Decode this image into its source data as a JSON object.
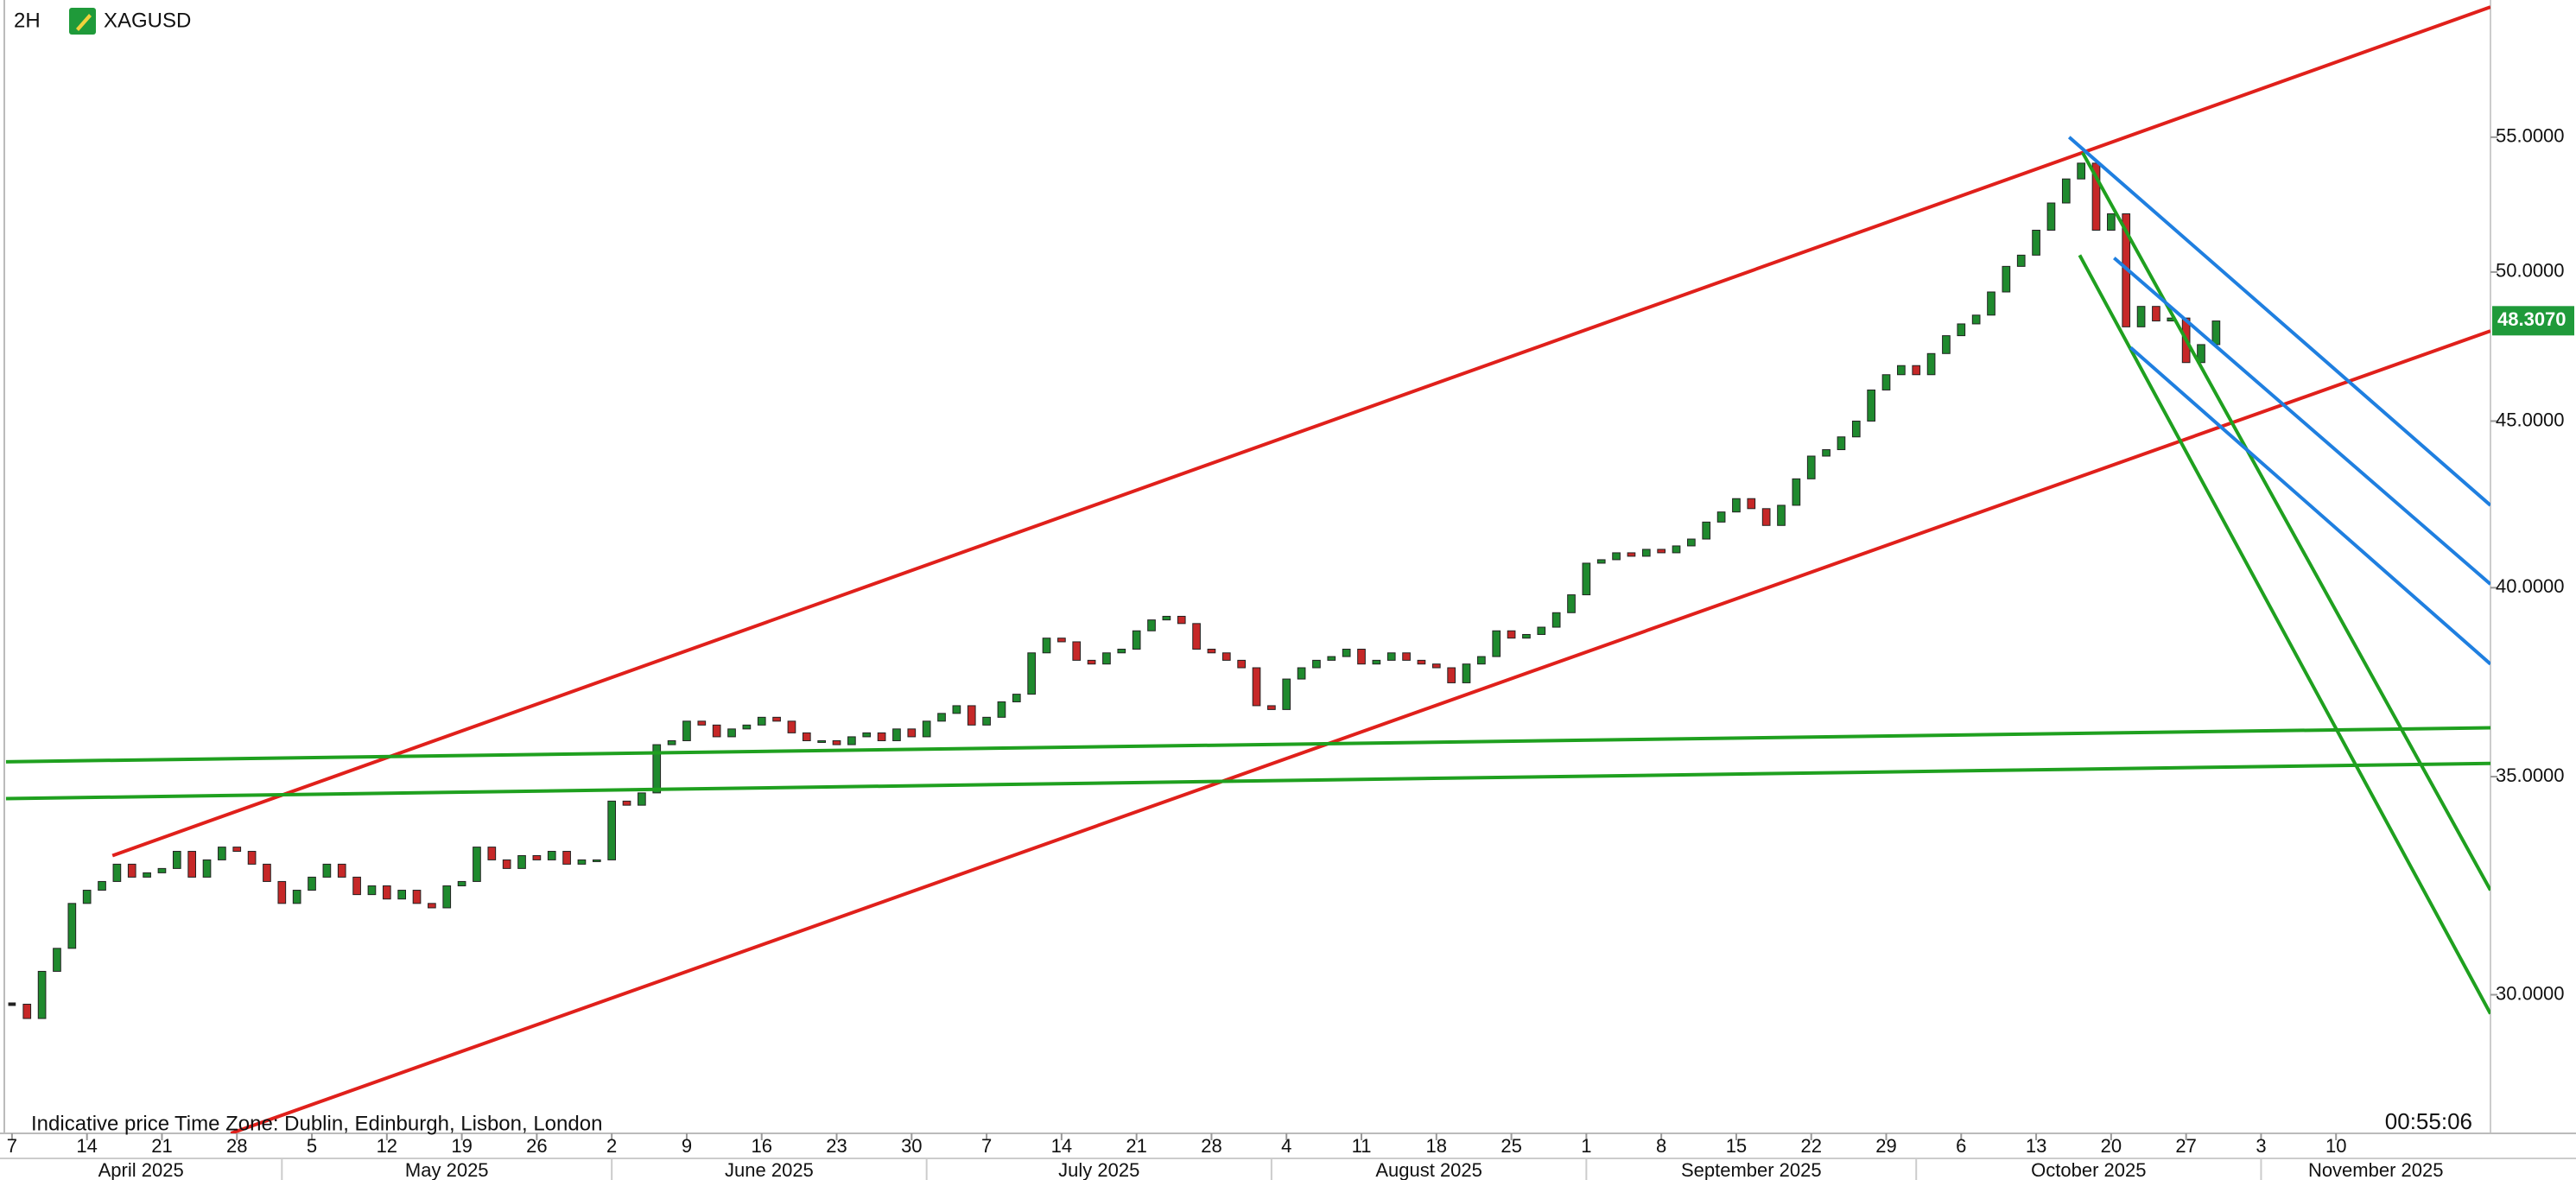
{
  "chart_data": {
    "type": "candlestick",
    "timeframe": "2H",
    "title": "XAGUSD",
    "footer_left": "Indicative price",
    "timezone": "Time Zone: Dublin, Edinburgh, Lisbon, London",
    "countdown": "00:55:06",
    "log_scale": true,
    "up_color": "#1f8a2e",
    "down_color": "#c62828",
    "ylim": [
      27.2,
      60.6
    ],
    "yticks": [
      {
        "value": 30,
        "label": "30.0000"
      },
      {
        "value": 35,
        "label": "35.0000"
      },
      {
        "value": 40,
        "label": "40.0000"
      },
      {
        "value": 45,
        "label": "45.0000"
      },
      {
        "value": 50,
        "label": "50.0000"
      },
      {
        "value": 55,
        "label": "55.0000"
      }
    ],
    "xlim": [
      -0.8,
      165.3
    ],
    "xticks": [
      {
        "value": 0,
        "label": "7"
      },
      {
        "value": 5,
        "label": "14"
      },
      {
        "value": 10,
        "label": "21"
      },
      {
        "value": 15,
        "label": "28"
      },
      {
        "value": 20,
        "label": "5"
      },
      {
        "value": 25,
        "label": "12"
      },
      {
        "value": 30,
        "label": "19"
      },
      {
        "value": 35,
        "label": "26"
      },
      {
        "value": 40,
        "label": "2"
      },
      {
        "value": 45,
        "label": "9"
      },
      {
        "value": 50,
        "label": "16"
      },
      {
        "value": 55,
        "label": "23"
      },
      {
        "value": 60,
        "label": "30"
      },
      {
        "value": 65,
        "label": "7"
      },
      {
        "value": 70,
        "label": "14"
      },
      {
        "value": 75,
        "label": "21"
      },
      {
        "value": 80,
        "label": "28"
      },
      {
        "value": 85,
        "label": "4"
      },
      {
        "value": 90,
        "label": "11"
      },
      {
        "value": 95,
        "label": "18"
      },
      {
        "value": 100,
        "label": "25"
      },
      {
        "value": 105,
        "label": "1"
      },
      {
        "value": 110,
        "label": "8"
      },
      {
        "value": 115,
        "label": "15"
      },
      {
        "value": 120,
        "label": "22"
      },
      {
        "value": 125,
        "label": "29"
      },
      {
        "value": 130,
        "label": "6"
      },
      {
        "value": 135,
        "label": "13"
      },
      {
        "value": 140,
        "label": "20"
      },
      {
        "value": 145,
        "label": "27"
      },
      {
        "value": 150,
        "label": "3"
      },
      {
        "value": 155,
        "label": "10"
      }
    ],
    "month_ticks": [
      {
        "value": -4,
        "label": "April 2025"
      },
      {
        "value": 18,
        "label": "May 2025"
      },
      {
        "value": 40,
        "label": "June 2025"
      },
      {
        "value": 61,
        "label": "July 2025"
      },
      {
        "value": 84,
        "label": "August 2025"
      },
      {
        "value": 105,
        "label": "September 2025"
      },
      {
        "value": 127,
        "label": "October 2025"
      },
      {
        "value": 150,
        "label": "November 2025"
      }
    ],
    "last_price": {
      "value": 48.307,
      "label": "48.3070",
      "color": "#1f9a3a"
    },
    "series": [
      {
        "name": "XAGUSD",
        "values": [
          29.8,
          29.5,
          30.5,
          31.0,
          32.0,
          32.3,
          32.5,
          32.9,
          32.6,
          32.7,
          32.8,
          33.2,
          32.6,
          33.0,
          33.3,
          33.2,
          32.9,
          32.5,
          32.0,
          32.3,
          32.6,
          32.9,
          32.6,
          32.2,
          32.4,
          32.1,
          32.3,
          32.0,
          31.9,
          32.4,
          32.5,
          33.3,
          33.0,
          32.8,
          33.1,
          33.0,
          33.2,
          32.9,
          33.0,
          33.0,
          34.4,
          34.3,
          34.6,
          35.8,
          35.9,
          36.4,
          36.3,
          36.0,
          36.2,
          36.3,
          36.5,
          36.4,
          36.1,
          35.9,
          35.9,
          35.8,
          36.0,
          36.1,
          35.9,
          36.2,
          36.0,
          36.4,
          36.6,
          36.8,
          36.3,
          36.5,
          36.9,
          37.1,
          38.2,
          38.6,
          38.5,
          38.0,
          37.9,
          38.2,
          38.3,
          38.8,
          39.1,
          39.2,
          39.0,
          38.3,
          38.2,
          38.0,
          37.8,
          36.8,
          36.7,
          37.5,
          37.8,
          38.0,
          38.1,
          38.3,
          37.9,
          38.0,
          38.2,
          38.0,
          37.9,
          37.8,
          37.4,
          37.9,
          38.1,
          38.8,
          38.6,
          38.7,
          38.9,
          39.3,
          39.8,
          40.7,
          40.8,
          41.0,
          40.9,
          41.1,
          41.0,
          41.2,
          41.4,
          41.9,
          42.2,
          42.6,
          42.3,
          41.8,
          42.4,
          43.2,
          43.9,
          44.1,
          44.5,
          45.0,
          46.0,
          46.5,
          46.8,
          46.5,
          47.2,
          47.8,
          48.2,
          48.5,
          49.3,
          50.2,
          50.6,
          51.5,
          52.5,
          53.4,
          54.0,
          51.5,
          52.1,
          48.1,
          48.8,
          48.3,
          48.4,
          46.9,
          47.5,
          48.3
        ]
      }
    ],
    "trendlines": [
      {
        "color": "#e0201b",
        "x": [
          6.7,
          165.3
        ],
        "y": [
          33.1,
          60.3
        ]
      },
      {
        "color": "#e0201b",
        "x": [
          14.6,
          165.3
        ],
        "y": [
          27.2,
          47.96
        ]
      },
      {
        "color": "#1fa01f",
        "x": [
          -0.4,
          165.3
        ],
        "y": [
          35.37,
          36.23
        ]
      },
      {
        "color": "#1fa01f",
        "x": [
          -0.4,
          165.3
        ],
        "y": [
          34.46,
          35.33
        ]
      },
      {
        "color": "#1fa01f",
        "x": [
          138.1,
          165.3
        ],
        "y": [
          54.4,
          32.3
        ]
      },
      {
        "color": "#1fa01f",
        "x": [
          137.9,
          165.3
        ],
        "y": [
          50.6,
          29.6
        ]
      },
      {
        "color": "#1f7fe0",
        "x": [
          137.2,
          165.3
        ],
        "y": [
          55.0,
          42.4
        ]
      },
      {
        "color": "#1f7fe0",
        "x": [
          140.2,
          165.3
        ],
        "y": [
          50.5,
          40.1
        ]
      },
      {
        "color": "#1f7fe0",
        "x": [
          141.3,
          165.3
        ],
        "y": [
          47.4,
          37.9
        ]
      }
    ]
  }
}
